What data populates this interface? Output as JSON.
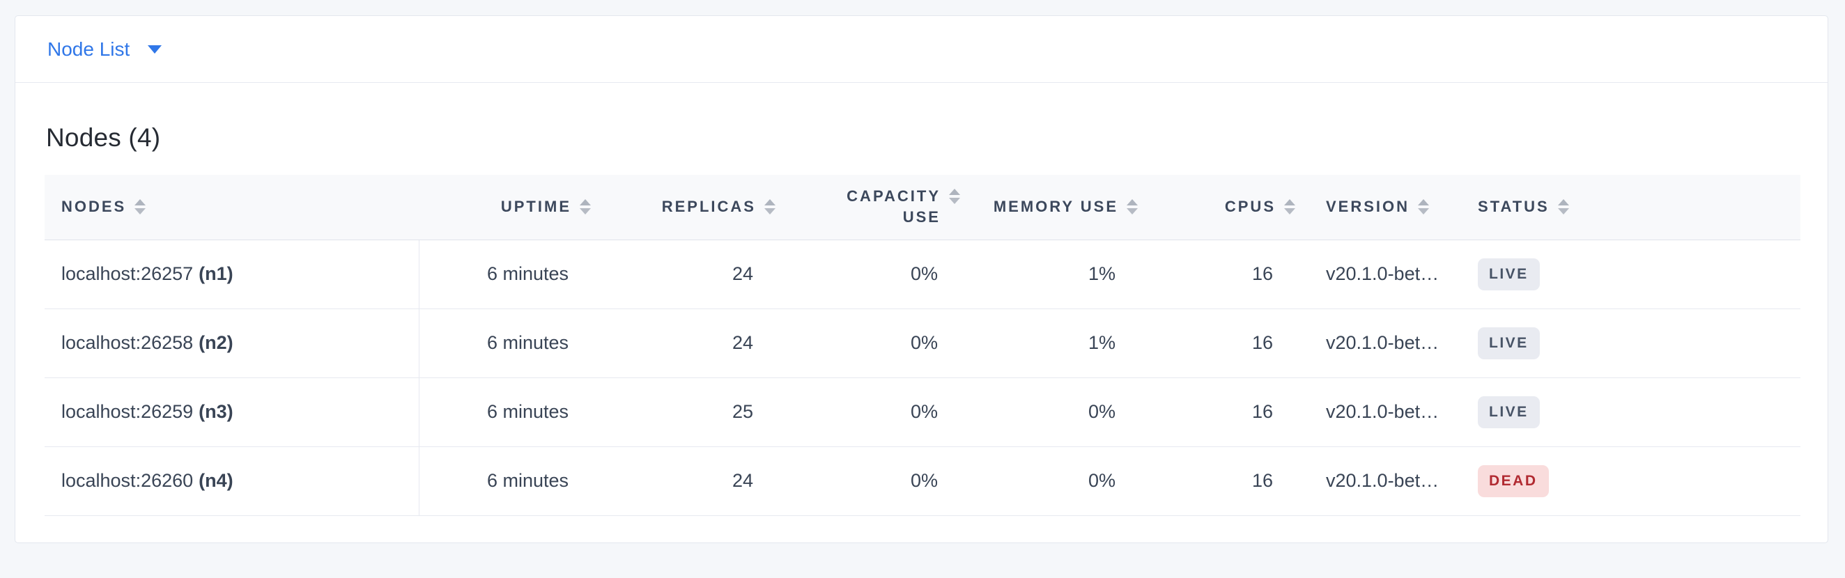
{
  "page": {
    "background": "#f5f7fa"
  },
  "view_selector": {
    "label": "Node List"
  },
  "heading": {
    "title": "Nodes (4)"
  },
  "table": {
    "columns": [
      {
        "key": "nodes",
        "label": "NODES",
        "align": "left"
      },
      {
        "key": "uptime",
        "label": "UPTIME",
        "align": "right"
      },
      {
        "key": "replicas",
        "label": "REPLICAS",
        "align": "right"
      },
      {
        "key": "capacity_use",
        "label": "CAPACITY USE",
        "align": "right"
      },
      {
        "key": "memory_use",
        "label": "MEMORY USE",
        "align": "right"
      },
      {
        "key": "cpus",
        "label": "CPUS",
        "align": "right"
      },
      {
        "key": "version",
        "label": "VERSION",
        "align": "left"
      },
      {
        "key": "status",
        "label": "STATUS",
        "align": "left"
      }
    ],
    "rows": [
      {
        "address": "localhost:26257",
        "node_id": "(n1)",
        "uptime": "6 minutes",
        "replicas": "24",
        "capacity_use": "0%",
        "memory_use": "1%",
        "cpus": "16",
        "version": "v20.1.0-bet…",
        "status": "LIVE"
      },
      {
        "address": "localhost:26258",
        "node_id": "(n2)",
        "uptime": "6 minutes",
        "replicas": "24",
        "capacity_use": "0%",
        "memory_use": "1%",
        "cpus": "16",
        "version": "v20.1.0-bet…",
        "status": "LIVE"
      },
      {
        "address": "localhost:26259",
        "node_id": "(n3)",
        "uptime": "6 minutes",
        "replicas": "25",
        "capacity_use": "0%",
        "memory_use": "0%",
        "cpus": "16",
        "version": "v20.1.0-bet…",
        "status": "LIVE"
      },
      {
        "address": "localhost:26260",
        "node_id": "(n4)",
        "uptime": "6 minutes",
        "replicas": "24",
        "capacity_use": "0%",
        "memory_use": "0%",
        "cpus": "16",
        "version": "v20.1.0-bet…",
        "status": "DEAD"
      }
    ]
  },
  "colors": {
    "accent_blue": "#3077e8",
    "live_badge_bg": "#e9ebf1",
    "live_badge_text": "#475366",
    "dead_badge_bg": "#f9dcdc",
    "dead_badge_text": "#b12a31"
  }
}
